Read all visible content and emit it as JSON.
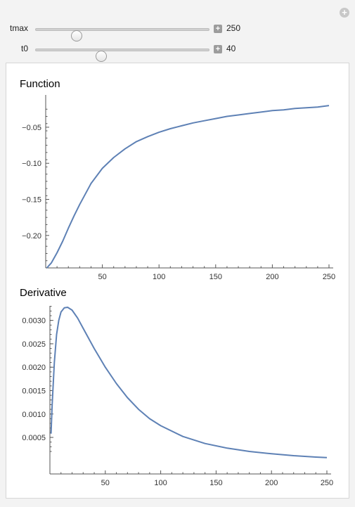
{
  "controls": [
    {
      "label": "tmax",
      "value": "250",
      "fraction": 0.235
    },
    {
      "label": "t0",
      "value": "40",
      "fraction": 0.375
    }
  ],
  "colors": {
    "curve": "#5e81b5",
    "axis": "#555555"
  },
  "chart_data": [
    {
      "type": "line",
      "title": "Function",
      "xlabel": "",
      "ylabel": "",
      "xlim": [
        0,
        250
      ],
      "ylim": [
        -0.245,
        -0.015
      ],
      "xticks": [
        "50",
        "100",
        "150",
        "200",
        "250"
      ],
      "xtick_values": [
        50,
        100,
        150,
        200,
        250
      ],
      "yticks": [
        "−0.05",
        "−0.10",
        "−0.15",
        "−0.20"
      ],
      "ytick_values": [
        -0.05,
        -0.1,
        -0.15,
        -0.2
      ],
      "series": [
        {
          "x": [
            1,
            5,
            10,
            15,
            20,
            25,
            30,
            40,
            50,
            60,
            70,
            80,
            90,
            100,
            110,
            120,
            130,
            140,
            150,
            160,
            170,
            180,
            190,
            200,
            210,
            220,
            230,
            240,
            250
          ],
          "y": [
            -0.245,
            -0.238,
            -0.224,
            -0.208,
            -0.19,
            -0.173,
            -0.157,
            -0.128,
            -0.107,
            -0.092,
            -0.08,
            -0.07,
            -0.063,
            -0.057,
            -0.052,
            -0.048,
            -0.044,
            -0.041,
            -0.038,
            -0.035,
            -0.033,
            -0.031,
            -0.029,
            -0.027,
            -0.026,
            -0.024,
            -0.023,
            -0.022,
            -0.02
          ]
        }
      ]
    },
    {
      "type": "line",
      "title": "Derivative",
      "xlabel": "",
      "ylabel": "",
      "xlim": [
        0,
        250
      ],
      "ylim": [
        0.0002,
        0.0034
      ],
      "xticks": [
        "50",
        "100",
        "150",
        "200",
        "250"
      ],
      "xtick_values": [
        50,
        100,
        150,
        200,
        250
      ],
      "yticks": [
        "0.0005",
        "0.0010",
        "0.0015",
        "0.0020",
        "0.0025",
        "0.0030"
      ],
      "ytick_values": [
        0.0005,
        0.001,
        0.0015,
        0.002,
        0.0025,
        0.003
      ],
      "series": [
        {
          "x": [
            1,
            2,
            4,
            6,
            8,
            10,
            13,
            16,
            20,
            25,
            30,
            40,
            50,
            60,
            70,
            80,
            90,
            100,
            120,
            140,
            160,
            180,
            200,
            220,
            240,
            250
          ],
          "y": [
            0.00058,
            0.0012,
            0.0021,
            0.0027,
            0.003,
            0.00318,
            0.00327,
            0.00328,
            0.00322,
            0.00305,
            0.00283,
            0.0024,
            0.002,
            0.00165,
            0.00135,
            0.0011,
            0.0009,
            0.00075,
            0.00052,
            0.00037,
            0.00027,
            0.0002,
            0.00015,
            0.00011,
            8e-05,
            7e-05
          ]
        }
      ]
    }
  ]
}
